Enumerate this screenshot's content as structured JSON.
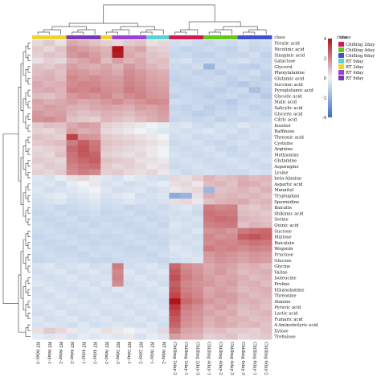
{
  "chart_data": {
    "type": "heatmap",
    "title": "",
    "class_legend_title": "class",
    "scale_legend_title": "class",
    "colorscale": {
      "min": -4,
      "max": 4,
      "ticks": [
        4,
        2,
        0,
        -2,
        -4
      ],
      "colors": {
        "low": "#3a6fc4",
        "mid": "#eef3f6",
        "high": "#b0141a"
      }
    },
    "classes": [
      {
        "name": "Chilling 2day",
        "color": "#d01a52"
      },
      {
        "name": "Chilling 4day",
        "color": "#64c81e"
      },
      {
        "name": "Chilling 6day",
        "color": "#3e4fd6"
      },
      {
        "name": "RT 0day",
        "color": "#55d3d6"
      },
      {
        "name": "RT 2day",
        "color": "#f0d233"
      },
      {
        "name": "RT 4day",
        "color": "#9d3fd6"
      },
      {
        "name": "RT 6day",
        "color": "#7a38b8"
      }
    ],
    "columns": [
      {
        "label": "RT 6day-3",
        "class": "RT 2day"
      },
      {
        "label": "RT 6day-1",
        "class": "RT 2day"
      },
      {
        "label": "RT 6day-2",
        "class": "RT 2day"
      },
      {
        "label": "RT 4day-2",
        "class": "RT 6day"
      },
      {
        "label": "RT 4day-1",
        "class": "RT 6day"
      },
      {
        "label": "RT 4day-3",
        "class": "RT 6day"
      },
      {
        "label": "RT 0day-3",
        "class": "RT 2day"
      },
      {
        "label": "RT 2day-3",
        "class": "RT 4day"
      },
      {
        "label": "RT 2day-1",
        "class": "RT 4day"
      },
      {
        "label": "RT 2day-2",
        "class": "RT 4day"
      },
      {
        "label": "RT 0day-1",
        "class": "RT 0day"
      },
      {
        "label": "RT 0day-2",
        "class": "RT 0day"
      },
      {
        "label": "Chilling 2day-2",
        "class": "Chilling 2day"
      },
      {
        "label": "Chilling 2day-1",
        "class": "Chilling 2day"
      },
      {
        "label": "Chilling 2day-3",
        "class": "Chilling 2day"
      },
      {
        "label": "Chilling 4day-1",
        "class": "Chilling 4day"
      },
      {
        "label": "Chilling 4day-2",
        "class": "Chilling 4day"
      },
      {
        "label": "Chilling 4day-3",
        "class": "Chilling 4day"
      },
      {
        "label": "Chilling 6day-3",
        "class": "Chilling 6day"
      },
      {
        "label": "Chilling 6day-1",
        "class": "Chilling 6day"
      },
      {
        "label": "Chilling 6day-2",
        "class": "Chilling 6day"
      }
    ],
    "rows": [
      "Ferulic acid",
      "Nicotinic acid",
      "Sinapinic acid",
      "Galactose",
      "Glycerol",
      "Phenylalanine",
      "Glutamic acid",
      "Succinic acid",
      "Pyroglutamic acid",
      "Glycolic acid",
      "Malic acid",
      "Salicylic acid",
      "Glyceric acid",
      "Citric acid",
      "Inositol",
      "Raffinose",
      "Threonic acid",
      "Cysteine",
      "Arginine",
      "Methionine",
      "Glutamine",
      "Asparagine",
      "Lysine",
      "beta-Alanine",
      "Aspartic acid",
      "Mannitol",
      "Tryptophan",
      "Spermidine",
      "Baicalin",
      "Shikimic acid",
      "Serine",
      "Quinic acid",
      "Sucrose",
      "Maltose",
      "Baicalein",
      "Wogonin",
      "Fructose",
      "Glucose",
      "Glycine",
      "Valine",
      "Isoleucine",
      "Proline",
      "Ethanolamine",
      "Threonine",
      "Alanine",
      "Pyruvic acid",
      "Lactic acid",
      "Fumaric acid",
      "4-Aminobutyric acid",
      "Xylose",
      "Trehalose"
    ],
    "values": [
      [
        0.3,
        0.5,
        0.2,
        1.0,
        0.8,
        0.6,
        0.4,
        0.3,
        0.5,
        0.6,
        0.2,
        0.3,
        -0.4,
        -0.3,
        -0.5,
        -0.6,
        -0.4,
        -0.5,
        -0.3,
        -0.5,
        -0.4
      ],
      [
        0.5,
        0.3,
        0.6,
        1.4,
        1.2,
        1.0,
        0.8,
        4.0,
        0.9,
        1.1,
        0.5,
        0.4,
        -0.5,
        -0.7,
        -0.6,
        -0.5,
        -0.6,
        -0.7,
        -0.4,
        -0.6,
        -0.5
      ],
      [
        0.4,
        0.6,
        0.5,
        1.3,
        1.5,
        1.2,
        0.9,
        3.8,
        1.0,
        0.8,
        0.6,
        0.5,
        -0.6,
        -0.5,
        -0.7,
        -0.7,
        -0.5,
        -0.6,
        -0.6,
        -0.4,
        -0.7
      ],
      [
        0.2,
        0.4,
        0.3,
        0.9,
        1.1,
        1.3,
        0.7,
        1.2,
        0.8,
        1.0,
        0.6,
        0.7,
        -0.4,
        -0.3,
        -0.6,
        -0.5,
        -0.6,
        -0.4,
        -0.3,
        -0.5,
        -0.6
      ],
      [
        0.6,
        0.5,
        0.7,
        1.2,
        1.0,
        0.9,
        1.1,
        0.8,
        1.3,
        1.0,
        0.8,
        0.6,
        -0.5,
        -0.6,
        -0.4,
        -1.5,
        -0.5,
        -0.6,
        -0.7,
        -0.8,
        -0.5
      ],
      [
        0.7,
        0.8,
        0.6,
        1.4,
        1.3,
        1.1,
        1.2,
        1.0,
        1.5,
        1.3,
        1.0,
        0.9,
        -0.6,
        -0.5,
        -0.7,
        -0.6,
        -0.8,
        -0.5,
        -0.6,
        -0.4,
        -0.7
      ],
      [
        0.8,
        0.9,
        0.7,
        1.6,
        1.4,
        1.5,
        1.3,
        1.2,
        1.6,
        1.4,
        1.1,
        1.0,
        -0.7,
        -0.6,
        -0.5,
        -0.6,
        -0.5,
        -0.7,
        -0.5,
        -0.6,
        -0.8
      ],
      [
        1.0,
        0.8,
        0.9,
        1.5,
        1.7,
        1.6,
        1.4,
        1.3,
        1.7,
        1.5,
        1.2,
        1.1,
        -0.6,
        -0.7,
        -0.6,
        -0.5,
        -0.6,
        -0.8,
        -1.0,
        -0.7,
        -0.6
      ],
      [
        0.9,
        1.0,
        0.8,
        1.7,
        1.6,
        1.8,
        1.5,
        1.4,
        1.8,
        1.6,
        1.3,
        1.2,
        -0.5,
        -0.6,
        -0.7,
        -0.7,
        -0.8,
        -0.6,
        -0.5,
        -1.2,
        -0.7
      ],
      [
        0.7,
        0.6,
        0.8,
        1.3,
        1.5,
        1.4,
        1.6,
        1.2,
        1.5,
        1.7,
        1.4,
        1.3,
        -0.7,
        -0.5,
        -0.6,
        -0.8,
        -0.6,
        -0.5,
        -0.7,
        -0.6,
        -0.9
      ],
      [
        1.1,
        0.9,
        1.0,
        1.2,
        1.0,
        1.1,
        1.3,
        1.5,
        1.2,
        1.4,
        1.6,
        1.5,
        -0.4,
        -0.5,
        -0.6,
        -0.6,
        -0.7,
        -0.9,
        -0.6,
        -0.5,
        -0.6
      ],
      [
        1.0,
        1.2,
        1.1,
        0.9,
        0.8,
        1.0,
        1.1,
        1.0,
        0.9,
        1.2,
        1.1,
        1.3,
        -0.6,
        -0.7,
        -0.5,
        -0.8,
        -0.6,
        -0.7,
        -0.5,
        -0.7,
        -0.6
      ],
      [
        1.3,
        1.1,
        1.2,
        0.8,
        0.6,
        0.7,
        0.9,
        0.8,
        0.7,
        0.9,
        1.0,
        1.2,
        -0.5,
        -0.6,
        -0.8,
        -0.7,
        -0.5,
        -0.6,
        -0.4,
        -0.5,
        -0.7
      ],
      [
        1.4,
        1.5,
        1.3,
        0.6,
        0.5,
        0.4,
        0.8,
        0.6,
        0.5,
        0.7,
        0.9,
        1.1,
        -0.6,
        -0.5,
        -0.6,
        -0.5,
        -0.7,
        -0.5,
        -0.6,
        -0.5,
        -0.5
      ],
      [
        0.5,
        0.7,
        0.6,
        1.0,
        1.2,
        1.1,
        0.4,
        0.3,
        0.2,
        0.1,
        0.0,
        -0.1,
        -0.3,
        -0.2,
        -0.4,
        -0.5,
        -0.3,
        -0.4,
        -0.2,
        -0.4,
        -0.3
      ],
      [
        0.4,
        0.3,
        0.5,
        1.2,
        0.9,
        1.0,
        0.3,
        0.2,
        0.1,
        0.0,
        -0.1,
        -0.2,
        -0.3,
        -0.4,
        -0.3,
        -0.2,
        -0.4,
        -0.3,
        -0.5,
        -0.3,
        -0.4
      ],
      [
        0.6,
        0.5,
        0.4,
        3.0,
        1.4,
        1.3,
        0.5,
        0.4,
        0.3,
        0.2,
        0.1,
        0.0,
        -0.4,
        -0.3,
        -0.5,
        -0.4,
        -0.3,
        -0.5,
        -0.4,
        -0.3,
        -0.5
      ],
      [
        0.5,
        0.6,
        0.7,
        1.8,
        2.4,
        1.9,
        0.6,
        0.5,
        0.4,
        0.3,
        0.2,
        0.1,
        -0.5,
        -0.4,
        -0.3,
        -0.5,
        -0.6,
        -0.4,
        -0.3,
        -0.5,
        -0.4
      ],
      [
        0.3,
        0.4,
        0.5,
        2.2,
        2.6,
        2.0,
        0.5,
        0.4,
        0.3,
        0.2,
        0.1,
        0.0,
        -0.4,
        -0.5,
        -0.4,
        -0.3,
        -0.5,
        -0.6,
        -0.4,
        -0.4,
        -0.5
      ],
      [
        0.4,
        0.3,
        0.6,
        2.0,
        2.5,
        2.3,
        0.4,
        0.3,
        0.2,
        0.3,
        0.1,
        0.0,
        -0.3,
        -0.4,
        -0.5,
        -0.4,
        -0.3,
        -0.5,
        -0.5,
        -0.3,
        -0.4
      ],
      [
        0.5,
        0.4,
        0.3,
        1.9,
        2.2,
        2.4,
        0.6,
        0.5,
        0.4,
        0.2,
        0.2,
        0.1,
        -0.4,
        -0.3,
        -0.4,
        -0.5,
        -0.4,
        -0.3,
        -0.4,
        -0.5,
        -0.3
      ],
      [
        0.3,
        0.5,
        0.4,
        1.7,
        2.0,
        2.1,
        0.5,
        0.3,
        0.4,
        0.3,
        0.1,
        0.2,
        -0.5,
        -0.4,
        -0.3,
        -0.4,
        -0.5,
        -0.4,
        -0.3,
        -0.4,
        -0.5
      ],
      [
        0.4,
        0.3,
        0.5,
        1.5,
        1.8,
        1.6,
        0.4,
        0.5,
        0.3,
        0.2,
        0.3,
        0.1,
        -0.3,
        -0.5,
        -0.4,
        -0.3,
        -0.4,
        -0.5,
        -0.5,
        -0.3,
        -0.4
      ],
      [
        -0.2,
        -0.3,
        -0.1,
        0.2,
        0.3,
        0.1,
        -0.2,
        -0.3,
        -0.1,
        -0.2,
        -0.3,
        -0.4,
        0.3,
        0.2,
        0.4,
        0.8,
        0.6,
        0.7,
        0.9,
        0.7,
        0.8
      ],
      [
        -0.3,
        -0.2,
        -0.4,
        -0.1,
        0.0,
        0.1,
        -0.3,
        -0.2,
        -0.4,
        -0.3,
        -0.2,
        -0.1,
        0.2,
        0.3,
        0.1,
        0.7,
        0.8,
        0.6,
        1.0,
        0.9,
        0.7
      ],
      [
        -0.2,
        -0.4,
        -0.3,
        -0.2,
        -0.1,
        0.0,
        -0.2,
        -0.4,
        -0.3,
        -0.2,
        -0.4,
        -0.3,
        0.1,
        0.2,
        0.3,
        -1.5,
        0.6,
        0.7,
        0.8,
        0.6,
        0.9
      ],
      [
        -0.3,
        -0.2,
        -0.1,
        -0.3,
        -0.2,
        -0.1,
        -0.3,
        -0.2,
        -0.1,
        -0.4,
        -0.3,
        -0.2,
        -1.8,
        -1.6,
        0.2,
        0.9,
        0.7,
        0.8,
        0.7,
        0.8,
        0.6
      ],
      [
        -0.4,
        -0.3,
        -0.2,
        -0.4,
        -0.3,
        -0.2,
        -0.4,
        -0.3,
        -0.2,
        -0.3,
        -0.4,
        -0.3,
        0.2,
        0.3,
        0.1,
        0.6,
        0.8,
        0.9,
        1.0,
        0.7,
        0.8
      ],
      [
        -0.5,
        -0.4,
        -0.6,
        -0.5,
        -0.4,
        -0.3,
        -0.5,
        -0.4,
        -0.6,
        -0.5,
        -0.4,
        -0.5,
        -0.3,
        -0.2,
        -0.4,
        1.8,
        1.6,
        1.7,
        0.6,
        0.5,
        0.7
      ],
      [
        -0.6,
        -0.5,
        -0.4,
        -0.6,
        -0.5,
        -0.4,
        -0.6,
        -0.5,
        -0.4,
        -0.6,
        -0.5,
        -0.4,
        -0.4,
        -0.3,
        -0.5,
        2.0,
        1.9,
        1.8,
        0.7,
        0.6,
        0.5
      ],
      [
        -0.5,
        -0.6,
        -0.5,
        -0.4,
        -0.6,
        -0.5,
        -0.5,
        -0.6,
        -0.5,
        -0.4,
        -0.6,
        -0.5,
        -0.3,
        -0.4,
        -0.3,
        1.9,
        2.1,
        2.0,
        0.8,
        0.7,
        0.6
      ],
      [
        -0.4,
        -0.5,
        -0.6,
        -0.5,
        -0.4,
        -0.6,
        -0.4,
        -0.5,
        -0.6,
        -0.5,
        -0.4,
        -0.6,
        -0.2,
        -0.3,
        -0.4,
        1.7,
        1.8,
        1.9,
        0.6,
        0.8,
        0.7
      ],
      [
        -0.5,
        -0.4,
        -0.5,
        -0.6,
        -0.5,
        -0.4,
        -0.5,
        -0.4,
        -0.5,
        -0.6,
        -0.5,
        -0.4,
        -0.3,
        -0.4,
        -0.2,
        1.4,
        1.5,
        1.3,
        1.9,
        2.1,
        2.2
      ],
      [
        -0.6,
        -0.5,
        -0.4,
        -0.5,
        -0.6,
        -0.5,
        -0.6,
        -0.5,
        -0.4,
        -0.5,
        -0.6,
        -0.5,
        -0.4,
        -0.3,
        -0.4,
        1.6,
        1.4,
        1.5,
        2.4,
        2.6,
        2.3
      ],
      [
        -0.5,
        -0.6,
        -0.5,
        -0.4,
        -0.5,
        -0.6,
        -0.5,
        -0.6,
        -0.5,
        -0.4,
        -0.5,
        -0.6,
        -0.3,
        -0.4,
        -0.3,
        1.5,
        1.7,
        1.6,
        1.8,
        2.0,
        1.9
      ],
      [
        -0.4,
        -0.5,
        -0.6,
        -0.6,
        -0.4,
        -0.5,
        -0.4,
        -0.5,
        -0.6,
        -0.6,
        -0.4,
        -0.5,
        -0.2,
        -0.3,
        -0.4,
        1.8,
        1.6,
        1.7,
        1.5,
        1.7,
        1.6
      ],
      [
        -0.5,
        -0.4,
        -0.5,
        -0.5,
        -0.6,
        -0.4,
        -0.5,
        -0.4,
        -0.5,
        -0.5,
        -0.6,
        -0.4,
        -0.3,
        -0.2,
        -0.3,
        1.3,
        1.5,
        1.4,
        1.2,
        1.4,
        1.3
      ],
      [
        -0.6,
        -0.5,
        -0.4,
        -0.4,
        -0.5,
        -0.6,
        -0.6,
        -0.5,
        -0.4,
        -0.4,
        -0.5,
        -0.6,
        -0.4,
        -0.3,
        -0.2,
        1.2,
        1.4,
        1.3,
        1.1,
        1.3,
        1.2
      ],
      [
        -0.3,
        -0.2,
        -0.4,
        -0.3,
        -0.2,
        -0.4,
        -0.3,
        1.8,
        -0.4,
        -0.3,
        -0.2,
        -0.4,
        2.2,
        1.5,
        1.3,
        1.0,
        1.2,
        1.1,
        0.8,
        0.9,
        0.7
      ],
      [
        -0.4,
        -0.3,
        -0.2,
        -0.4,
        -0.3,
        -0.2,
        -0.4,
        1.6,
        -0.2,
        -0.4,
        -0.3,
        -0.2,
        2.5,
        1.7,
        1.4,
        1.1,
        1.3,
        1.0,
        0.7,
        0.8,
        0.9
      ],
      [
        -0.3,
        -0.4,
        -0.3,
        -0.2,
        -0.4,
        -0.3,
        -0.3,
        1.7,
        -0.3,
        -0.2,
        -0.4,
        -0.3,
        2.7,
        1.8,
        1.5,
        1.2,
        1.0,
        1.1,
        0.9,
        0.7,
        0.8
      ],
      [
        -0.2,
        -0.3,
        -0.4,
        -0.3,
        -0.2,
        -0.4,
        -0.2,
        1.5,
        -0.4,
        -0.3,
        -0.2,
        -0.4,
        2.4,
        1.6,
        1.4,
        1.3,
        1.1,
        1.2,
        0.8,
        0.9,
        0.7
      ],
      [
        -0.4,
        -0.2,
        -0.3,
        -0.4,
        -0.3,
        -0.2,
        -0.4,
        -0.2,
        -0.3,
        -0.4,
        -0.3,
        -0.2,
        2.6,
        1.7,
        1.5,
        1.0,
        1.2,
        1.0,
        0.7,
        0.8,
        0.9
      ],
      [
        -0.3,
        -0.4,
        -0.2,
        -0.3,
        -0.4,
        -0.3,
        -0.3,
        -0.4,
        -0.2,
        -0.3,
        -0.4,
        -0.3,
        2.9,
        1.9,
        1.6,
        1.1,
        1.3,
        1.2,
        0.9,
        0.7,
        0.8
      ],
      [
        -0.2,
        -0.3,
        -0.3,
        -0.2,
        -0.3,
        -0.4,
        -0.2,
        -0.3,
        -0.3,
        -0.2,
        -0.3,
        -0.4,
        4.0,
        2.2,
        1.8,
        1.3,
        1.1,
        1.2,
        0.8,
        0.9,
        0.7
      ],
      [
        -0.3,
        -0.2,
        -0.4,
        -0.3,
        -0.2,
        -0.3,
        -0.3,
        -0.2,
        -0.4,
        -0.3,
        -0.2,
        -0.3,
        3.2,
        1.8,
        1.5,
        1.0,
        1.2,
        0.9,
        0.7,
        0.8,
        0.6
      ],
      [
        -0.4,
        -0.3,
        -0.2,
        -0.4,
        -0.3,
        -0.2,
        -0.4,
        -0.3,
        -0.2,
        -0.4,
        -0.3,
        -0.2,
        2.8,
        1.6,
        1.4,
        1.1,
        0.9,
        1.0,
        0.6,
        0.7,
        0.8
      ],
      [
        -0.2,
        -0.4,
        -0.3,
        -0.2,
        -0.4,
        -0.3,
        -0.2,
        -0.4,
        -0.3,
        -0.2,
        -0.4,
        -0.3,
        2.5,
        1.5,
        1.3,
        0.9,
        1.1,
        0.8,
        0.8,
        0.6,
        0.7
      ],
      [
        -0.3,
        -0.2,
        -0.3,
        -0.4,
        -0.2,
        -0.4,
        -0.3,
        -0.2,
        -0.3,
        -0.4,
        -0.2,
        -0.4,
        2.3,
        1.4,
        1.2,
        0.8,
        1.0,
        0.9,
        0.7,
        0.8,
        0.6
      ],
      [
        0.2,
        0.5,
        0.3,
        0.1,
        -0.2,
        -0.1,
        0.2,
        0.1,
        0.0,
        -0.1,
        -0.2,
        0.3,
        1.8,
        1.1,
        1.0,
        0.6,
        0.7,
        0.5,
        0.5,
        0.4,
        0.6
      ],
      [
        -0.1,
        -0.2,
        0.1,
        -0.3,
        -0.1,
        -0.2,
        -0.1,
        -0.2,
        0.1,
        -0.3,
        -0.1,
        -0.2,
        1.2,
        0.9,
        0.8,
        0.4,
        0.5,
        0.6,
        0.3,
        0.4,
        0.5
      ]
    ]
  }
}
